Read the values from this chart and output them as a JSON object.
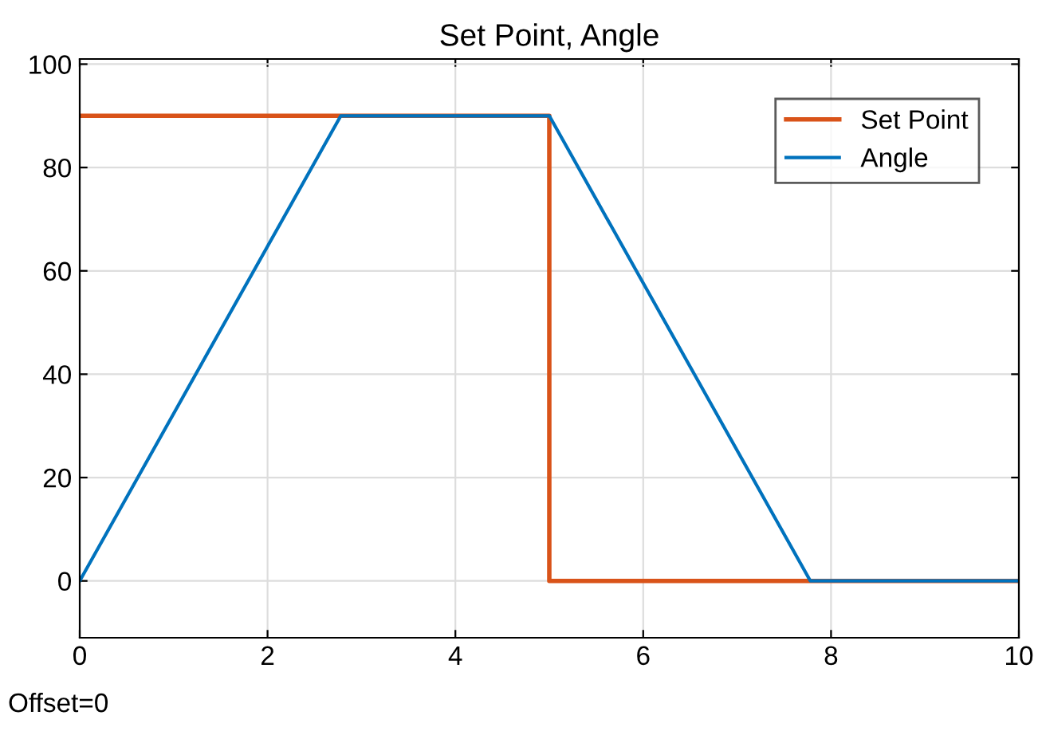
{
  "chart_data": {
    "type": "line",
    "title": "Set Point, Angle",
    "series": [
      {
        "name": "Set Point",
        "color": "#d95319",
        "type": "step",
        "x": [
          0,
          5,
          5,
          10
        ],
        "values": [
          90,
          90,
          0,
          0
        ]
      },
      {
        "name": "Angle",
        "color": "#0072bd",
        "x": [
          0,
          2.78,
          5,
          7.78,
          10
        ],
        "values": [
          0,
          90,
          90,
          0,
          0
        ]
      }
    ],
    "xlim": [
      0,
      10
    ],
    "xticks": [
      0,
      2,
      4,
      6,
      8,
      10
    ],
    "ylim": [
      -11,
      101
    ],
    "yticks": [
      0,
      20,
      40,
      60,
      80,
      100
    ],
    "grid": true,
    "legend": "top right",
    "line_style": "solid",
    "marker": "none",
    "annotations": [
      "Offset=0"
    ]
  }
}
